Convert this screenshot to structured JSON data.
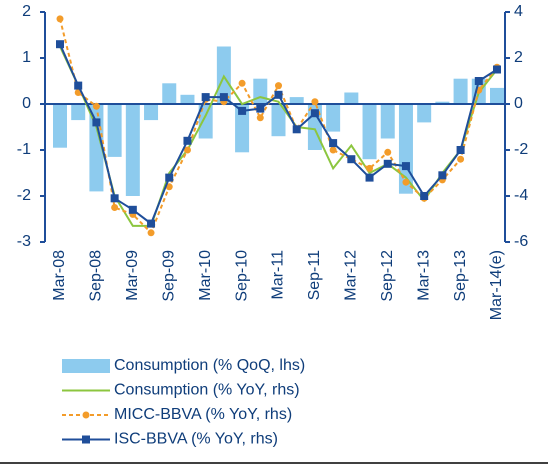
{
  "chart_data": {
    "type": "combo",
    "categories": [
      "Mar-08",
      null,
      "Sep-08",
      null,
      "Mar-09",
      null,
      "Sep-09",
      null,
      "Mar-10",
      null,
      "Sep-10",
      null,
      "Mar-11",
      null,
      "Sep-11",
      null,
      "Mar-12",
      null,
      "Sep-12",
      null,
      "Mar-13",
      null,
      "Sep-13",
      null,
      "Mar-14(e)"
    ],
    "ylim": [
      -3,
      2
    ],
    "yticks": [
      -3,
      -2,
      -1,
      0,
      1,
      2
    ],
    "y2lim": [
      -6,
      4
    ],
    "y2ticks": [
      -6,
      -4,
      -2,
      0,
      2,
      4
    ],
    "series": [
      {
        "name": "Consumption (% QoQ, lhs)",
        "type": "bar",
        "color": "#8dcbee",
        "values": [
          -0.95,
          -0.35,
          -1.9,
          -1.15,
          -2.0,
          -0.35,
          0.45,
          0.2,
          -0.75,
          1.25,
          -1.05,
          0.55,
          -0.7,
          0.15,
          -1.0,
          -0.6,
          0.25,
          -1.2,
          -0.75,
          -1.95,
          -0.4,
          0.05,
          0.55,
          0.55,
          0.35
        ]
      },
      {
        "name": "Consumption (% YoY, rhs)",
        "type": "line",
        "axis": "y2",
        "color": "#8cc63f",
        "values": [
          2.5,
          0.8,
          -1.0,
          -4.0,
          -5.3,
          -5.3,
          -3.0,
          -2.0,
          -0.5,
          1.2,
          0.0,
          0.3,
          0.1,
          -1.0,
          -1.1,
          -2.8,
          -1.8,
          -3.0,
          -2.6,
          -3.2,
          -4.2,
          -3.0,
          -2.0,
          0.5,
          1.5
        ]
      },
      {
        "name": "MICC-BBVA (% YoY, rhs)",
        "type": "line",
        "axis": "y2",
        "color": "#f39c2a",
        "dashed": true,
        "marker": "circle",
        "values": [
          3.7,
          0.5,
          -0.1,
          -4.5,
          -4.8,
          -5.6,
          -3.6,
          -2.0,
          0.2,
          0.1,
          0.9,
          -0.6,
          0.8,
          -1.1,
          0.1,
          -2.0,
          -2.4,
          -2.8,
          -2.1,
          -3.4,
          -4.1,
          -3.3,
          -2.4,
          0.6,
          1.6
        ]
      },
      {
        "name": "ISC-BBVA (% YoY, rhs)",
        "type": "line",
        "axis": "y2",
        "color": "#1f4e9a",
        "marker": "square",
        "values": [
          2.6,
          0.8,
          -0.8,
          -4.1,
          -4.6,
          -5.2,
          -3.2,
          -1.6,
          0.3,
          0.3,
          -0.3,
          -0.2,
          0.4,
          -1.1,
          -0.4,
          -1.7,
          -2.4,
          -3.2,
          -2.6,
          -2.7,
          -4.0,
          -3.1,
          -2.0,
          1.0,
          1.5
        ]
      }
    ]
  }
}
